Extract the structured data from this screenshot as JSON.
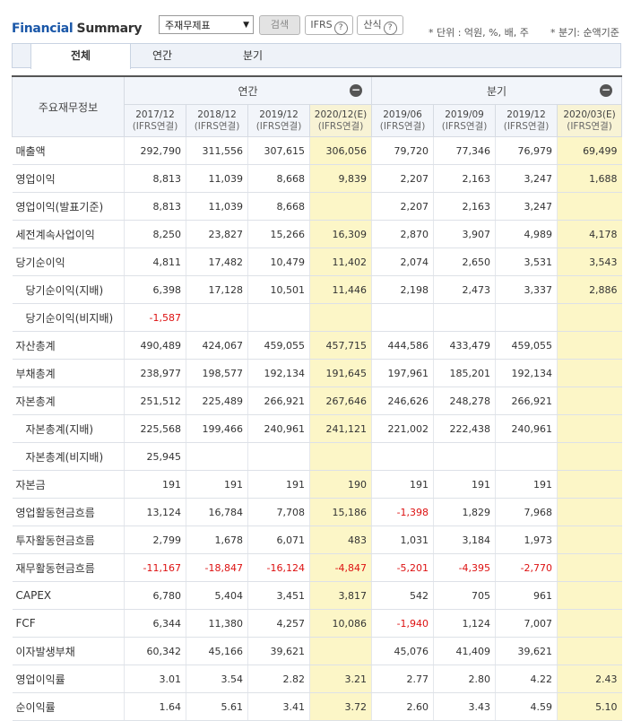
{
  "header": {
    "title_part1": "Financial",
    "title_part2": "Summary",
    "select_value": "주재무제표",
    "search_label": "검색",
    "ifrs_label": "IFRS",
    "calc_label": "산식",
    "help_glyph": "?",
    "unit_note": "* 단위 : 억원, %, 배, 주",
    "quarter_note": "* 분기: 순액기준"
  },
  "tabs": [
    "전체",
    "연간",
    "분기"
  ],
  "table": {
    "row_header": "주요재무정보",
    "group_annual": "연간",
    "group_quarter": "분기",
    "columns": [
      {
        "period": "2017/12",
        "basis": "(IFRS연결)"
      },
      {
        "period": "2018/12",
        "basis": "(IFRS연결)"
      },
      {
        "period": "2019/12",
        "basis": "(IFRS연결)"
      },
      {
        "period": "2020/12(E)",
        "basis": "(IFRS연결)"
      },
      {
        "period": "2019/06",
        "basis": "(IFRS연결)"
      },
      {
        "period": "2019/09",
        "basis": "(IFRS연결)"
      },
      {
        "period": "2019/12",
        "basis": "(IFRS연결)"
      },
      {
        "period": "2020/03(E)",
        "basis": "(IFRS연결)"
      }
    ],
    "rows": [
      {
        "label": "매출액",
        "sub": false,
        "values": [
          "292,790",
          "311,556",
          "307,615",
          "306,056",
          "79,720",
          "77,346",
          "76,979",
          "69,499"
        ]
      },
      {
        "label": "영업이익",
        "sub": false,
        "values": [
          "8,813",
          "11,039",
          "8,668",
          "9,839",
          "2,207",
          "2,163",
          "3,247",
          "1,688"
        ]
      },
      {
        "label": "영업이익(발표기준)",
        "sub": false,
        "values": [
          "8,813",
          "11,039",
          "8,668",
          "",
          "2,207",
          "2,163",
          "3,247",
          ""
        ]
      },
      {
        "label": "세전계속사업이익",
        "sub": false,
        "values": [
          "8,250",
          "23,827",
          "15,266",
          "16,309",
          "2,870",
          "3,907",
          "4,989",
          "4,178"
        ]
      },
      {
        "label": "당기순이익",
        "sub": false,
        "values": [
          "4,811",
          "17,482",
          "10,479",
          "11,402",
          "2,074",
          "2,650",
          "3,531",
          "3,543"
        ]
      },
      {
        "label": "당기순이익(지배)",
        "sub": true,
        "values": [
          "6,398",
          "17,128",
          "10,501",
          "11,446",
          "2,198",
          "2,473",
          "3,337",
          "2,886"
        ]
      },
      {
        "label": "당기순이익(비지배)",
        "sub": true,
        "values": [
          "-1,587",
          "",
          "",
          "",
          "",
          "",
          "",
          ""
        ]
      },
      {
        "label": "자산총계",
        "sub": false,
        "values": [
          "490,489",
          "424,067",
          "459,055",
          "457,715",
          "444,586",
          "433,479",
          "459,055",
          ""
        ]
      },
      {
        "label": "부채총계",
        "sub": false,
        "values": [
          "238,977",
          "198,577",
          "192,134",
          "191,645",
          "197,961",
          "185,201",
          "192,134",
          ""
        ]
      },
      {
        "label": "자본총계",
        "sub": false,
        "values": [
          "251,512",
          "225,489",
          "266,921",
          "267,646",
          "246,626",
          "248,278",
          "266,921",
          ""
        ]
      },
      {
        "label": "자본총계(지배)",
        "sub": true,
        "values": [
          "225,568",
          "199,466",
          "240,961",
          "241,121",
          "221,002",
          "222,438",
          "240,961",
          ""
        ]
      },
      {
        "label": "자본총계(비지배)",
        "sub": true,
        "values": [
          "25,945",
          "",
          "",
          "",
          "",
          "",
          "",
          ""
        ]
      },
      {
        "label": "자본금",
        "sub": false,
        "values": [
          "191",
          "191",
          "191",
          "190",
          "191",
          "191",
          "191",
          ""
        ]
      },
      {
        "label": "영업활동현금흐름",
        "sub": false,
        "values": [
          "13,124",
          "16,784",
          "7,708",
          "15,186",
          "-1,398",
          "1,829",
          "7,968",
          ""
        ]
      },
      {
        "label": "투자활동현금흐름",
        "sub": false,
        "values": [
          "2,799",
          "1,678",
          "6,071",
          "483",
          "1,031",
          "3,184",
          "1,973",
          ""
        ]
      },
      {
        "label": "재무활동현금흐름",
        "sub": false,
        "values": [
          "-11,167",
          "-18,847",
          "-16,124",
          "-4,847",
          "-5,201",
          "-4,395",
          "-2,770",
          ""
        ]
      },
      {
        "label": "CAPEX",
        "sub": false,
        "values": [
          "6,780",
          "5,404",
          "3,451",
          "3,817",
          "542",
          "705",
          "961",
          ""
        ]
      },
      {
        "label": "FCF",
        "sub": false,
        "values": [
          "6,344",
          "11,380",
          "4,257",
          "10,086",
          "-1,940",
          "1,124",
          "7,007",
          ""
        ]
      },
      {
        "label": "이자발생부채",
        "sub": false,
        "values": [
          "60,342",
          "45,166",
          "39,621",
          "",
          "45,076",
          "41,409",
          "39,621",
          ""
        ]
      },
      {
        "label": "영업이익률",
        "sub": false,
        "values": [
          "3.01",
          "3.54",
          "2.82",
          "3.21",
          "2.77",
          "2.80",
          "4.22",
          "2.43"
        ]
      },
      {
        "label": "순이익률",
        "sub": false,
        "values": [
          "1.64",
          "5.61",
          "3.41",
          "3.72",
          "2.60",
          "3.43",
          "4.59",
          "5.10"
        ]
      }
    ]
  }
}
